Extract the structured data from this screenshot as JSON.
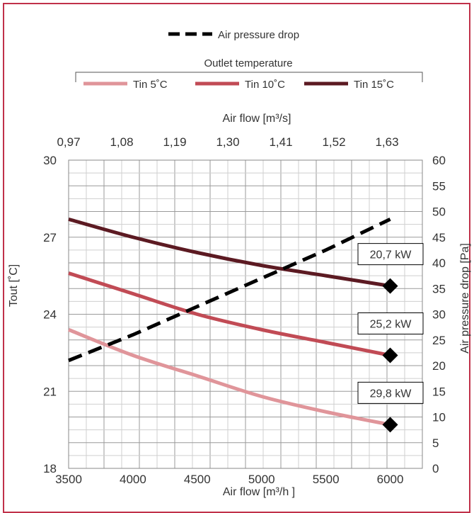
{
  "chart_data": {
    "type": "line",
    "legend_top": {
      "label": "Air pressure drop"
    },
    "legend_group": {
      "title": "Outlet temperature",
      "items": [
        {
          "label": "Tin 5˚C",
          "color": "#e0959a"
        },
        {
          "label": "Tin 10˚C",
          "color": "#c14b55"
        },
        {
          "label": "Tin 15˚C",
          "color": "#5c1a22"
        }
      ]
    },
    "xlabel": "Air flow  [m³/h ]",
    "x2label": "Air flow  [m³/s]",
    "ylabel": "Tout [˚C]",
    "y2label": "Air pressure drop  [Pa]",
    "xlim": [
      3500,
      6250
    ],
    "ylim": [
      18,
      30
    ],
    "y2lim": [
      0,
      60
    ],
    "x_ticks": [
      3500,
      4000,
      4500,
      5000,
      5500,
      6000
    ],
    "x_tick_labels": [
      "3500",
      "4000",
      "4500",
      "5000",
      "5500",
      "6000"
    ],
    "x2_tick_labels": [
      "0,97",
      "1,08",
      "1,19",
      "1,30",
      "1,41",
      "1,52",
      "1,63"
    ],
    "y_ticks": [
      18,
      21,
      24,
      27,
      30
    ],
    "y_tick_labels": [
      "18",
      "21",
      "24",
      "27",
      "30"
    ],
    "y2_ticks": [
      0,
      5,
      10,
      15,
      20,
      25,
      30,
      35,
      40,
      45,
      50,
      55,
      60
    ],
    "y2_tick_labels": [
      "0",
      "5",
      "10",
      "15",
      "20",
      "25",
      "30",
      "35",
      "40",
      "45",
      "50",
      "55",
      "60"
    ],
    "grid": true,
    "series": [
      {
        "name": "Tin 5˚C",
        "axis": "left",
        "color": "#e0959a",
        "x": [
          3500,
          4000,
          4500,
          5000,
          5500,
          6000
        ],
        "y": [
          23.4,
          22.4,
          21.6,
          20.8,
          20.2,
          19.7
        ]
      },
      {
        "name": "Tin 10˚C",
        "axis": "left",
        "color": "#c14b55",
        "x": [
          3500,
          4000,
          4500,
          5000,
          5500,
          6000
        ],
        "y": [
          25.6,
          24.8,
          24.0,
          23.4,
          22.9,
          22.4
        ]
      },
      {
        "name": "Tin 15˚C",
        "axis": "left",
        "color": "#5c1a22",
        "x": [
          3500,
          4000,
          4500,
          5000,
          5500,
          6000
        ],
        "y": [
          27.7,
          27.0,
          26.4,
          25.9,
          25.5,
          25.1
        ]
      },
      {
        "name": "Air pressure drop",
        "axis": "right",
        "color": "#000000",
        "dashed": true,
        "x": [
          3500,
          4000,
          4500,
          5000,
          5500,
          6000
        ],
        "y": [
          21,
          26,
          31.5,
          37,
          42.5,
          48.5
        ]
      }
    ],
    "annotations": [
      {
        "text": "20,7 kW",
        "x": 6000,
        "y": 25.1
      },
      {
        "text": "25,2 kW",
        "x": 6000,
        "y": 22.4
      },
      {
        "text": "29,8 kW",
        "x": 6000,
        "y": 19.7
      }
    ]
  }
}
